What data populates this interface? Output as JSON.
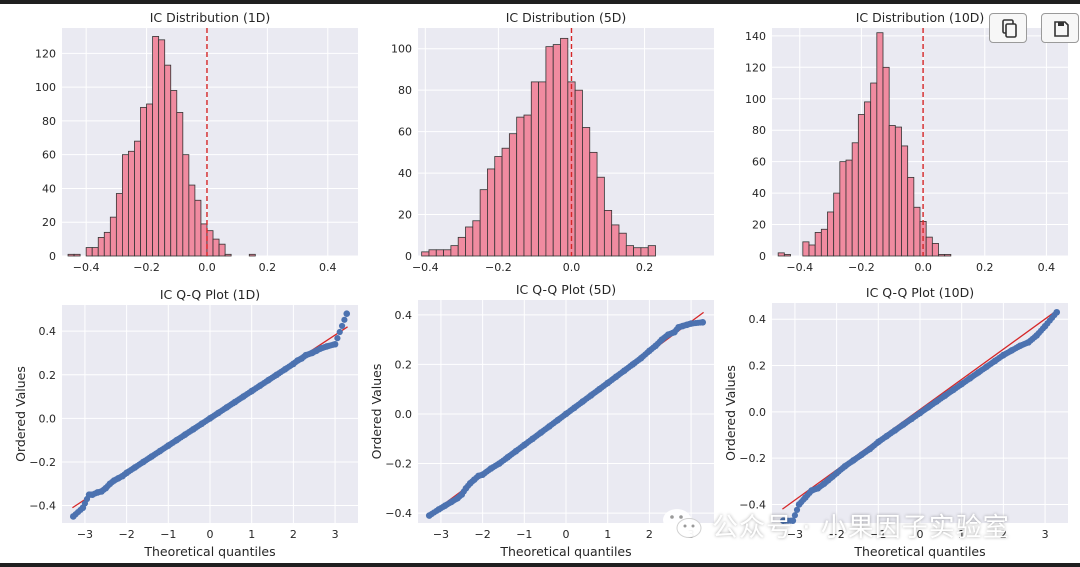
{
  "figure": {
    "background": "#ffffff",
    "axes_background": "#eaeaf2",
    "grid_color": "#ffffff",
    "bar_color": "#f08ba0",
    "bar_edge": "#333333",
    "mean_line_color": "#d62728",
    "point_color": "#4c72b0",
    "fit_line_color": "#d62728"
  },
  "toolbar": {
    "copy_icon": "copy-icon",
    "save_icon": "save-icon"
  },
  "watermark": {
    "icon": "wechat-icon",
    "text": "公众号 · 小果因子实验室"
  },
  "chart_data": [
    {
      "type": "bar",
      "title": "IC Distribution (1D)",
      "xlabel": "",
      "ylabel": "",
      "xlim": [
        -0.48,
        0.5
      ],
      "ylim": [
        0,
        135
      ],
      "xticks": [
        -0.4,
        -0.2,
        0.0,
        0.2,
        0.4
      ],
      "yticks": [
        0,
        20,
        40,
        60,
        80,
        100,
        120
      ],
      "xtick_labels": [
        "−0.4",
        "−0.2",
        "0.0",
        "0.2",
        "0.4"
      ],
      "ytick_labels": [
        "0",
        "20",
        "40",
        "60",
        "80",
        "100",
        "120"
      ],
      "grid": true,
      "bin_start": -0.46,
      "bin_width": 0.02,
      "counts": [
        1,
        1,
        0,
        5,
        5,
        11,
        14,
        23,
        37,
        60,
        62,
        68,
        88,
        90,
        130,
        128,
        113,
        98,
        85,
        60,
        42,
        33,
        19,
        15,
        10,
        7,
        1,
        0,
        0,
        0,
        1
      ],
      "mean_line_x": 0.0
    },
    {
      "type": "bar",
      "title": "IC Distribution (5D)",
      "xlabel": "",
      "ylabel": "",
      "xlim": [
        -0.42,
        0.39
      ],
      "ylim": [
        0,
        110
      ],
      "xticks": [
        -0.4,
        -0.2,
        0.0,
        0.2
      ],
      "yticks": [
        0,
        20,
        40,
        60,
        80,
        100
      ],
      "xtick_labels": [
        "−0.4",
        "−0.2",
        "0.0",
        "0.2"
      ],
      "ytick_labels": [
        "0",
        "20",
        "40",
        "60",
        "80",
        "100"
      ],
      "grid": true,
      "bin_start": -0.41,
      "bin_width": 0.02,
      "counts": [
        2,
        3,
        3,
        3,
        5,
        9,
        14,
        17,
        32,
        42,
        48,
        52,
        59,
        67,
        68,
        84,
        84,
        101,
        102,
        105,
        84,
        80,
        62,
        50,
        38,
        22,
        15,
        11,
        5,
        4,
        4,
        5
      ],
      "mean_line_x": 0.0
    },
    {
      "type": "bar",
      "title": "IC Distribution (10D)",
      "xlabel": "",
      "ylabel": "",
      "xlim": [
        -0.49,
        0.47
      ],
      "ylim": [
        0,
        145
      ],
      "xticks": [
        -0.4,
        -0.2,
        0.0,
        0.2,
        0.4
      ],
      "yticks": [
        0,
        20,
        40,
        60,
        80,
        100,
        120,
        140
      ],
      "xtick_labels": [
        "−0.4",
        "−0.2",
        "0.0",
        "0.2",
        "0.4"
      ],
      "ytick_labels": [
        "0",
        "20",
        "40",
        "60",
        "80",
        "100",
        "120",
        "140"
      ],
      "grid": true,
      "bin_start": -0.47,
      "bin_width": 0.02,
      "counts": [
        2,
        1,
        0,
        0,
        9,
        7,
        15,
        17,
        28,
        40,
        60,
        61,
        72,
        90,
        98,
        110,
        142,
        120,
        83,
        82,
        70,
        50,
        31,
        22,
        12,
        8,
        1,
        1
      ],
      "mean_line_x": 0.0
    },
    {
      "type": "scatter",
      "title": "IC Q-Q Plot (1D)",
      "xlabel": "Theoretical quantiles",
      "ylabel": "Ordered Values",
      "xlim": [
        -3.55,
        3.55
      ],
      "ylim": [
        -0.48,
        0.52
      ],
      "xticks": [
        -3,
        -2,
        -1,
        0,
        1,
        2,
        3
      ],
      "yticks": [
        -0.4,
        -0.2,
        0.0,
        0.2,
        0.4
      ],
      "xtick_labels": [
        "−3",
        "−2",
        "−1",
        "0",
        "1",
        "2",
        "3"
      ],
      "ytick_labels": [
        "−0.4",
        "−0.2",
        "0.0",
        "0.2",
        "0.4"
      ],
      "grid": true,
      "fit_line": {
        "x": [
          -3.3,
          3.3
        ],
        "y": [
          -0.41,
          0.42
        ]
      },
      "points_x": [
        -3.28,
        -3.05,
        -2.9,
        -2.82,
        -2.7,
        -2.6,
        -2.5,
        -2.4,
        -2.3,
        -2.2,
        -2.1,
        -2.0,
        -1.8,
        -1.6,
        -1.4,
        -1.2,
        -1.0,
        -0.8,
        -0.6,
        -0.4,
        -0.2,
        0.0,
        0.2,
        0.4,
        0.6,
        0.8,
        1.0,
        1.2,
        1.4,
        1.6,
        1.8,
        2.0,
        2.1,
        2.2,
        2.3,
        2.45,
        2.55,
        2.65,
        2.8,
        3.0,
        3.28
      ],
      "points_y": [
        -0.45,
        -0.41,
        -0.35,
        -0.35,
        -0.34,
        -0.335,
        -0.32,
        -0.3,
        -0.285,
        -0.275,
        -0.265,
        -0.25,
        -0.225,
        -0.2,
        -0.175,
        -0.15,
        -0.125,
        -0.1,
        -0.075,
        -0.05,
        -0.025,
        0.0,
        0.025,
        0.05,
        0.075,
        0.1,
        0.125,
        0.15,
        0.175,
        0.2,
        0.225,
        0.25,
        0.265,
        0.275,
        0.29,
        0.3,
        0.31,
        0.32,
        0.33,
        0.34,
        0.48
      ]
    },
    {
      "type": "scatter",
      "title": "IC Q-Q Plot (5D)",
      "xlabel": "Theoretical quantiles",
      "ylabel": "Ordered Values",
      "xlim": [
        -3.55,
        3.55
      ],
      "ylim": [
        -0.44,
        0.46
      ],
      "xticks": [
        -3,
        -2,
        -1,
        0,
        1,
        2,
        3
      ],
      "yticks": [
        -0.4,
        -0.2,
        0.0,
        0.2,
        0.4
      ],
      "xtick_labels": [
        "−3",
        "−2",
        "−1",
        "0",
        "1",
        "2",
        "3"
      ],
      "ytick_labels": [
        "−0.4",
        "−0.2",
        "0.0",
        "0.2",
        "0.4"
      ],
      "grid": true,
      "fit_line": {
        "x": [
          -3.3,
          3.3
        ],
        "y": [
          -0.41,
          0.41
        ]
      },
      "points_x": [
        -3.28,
        -3.05,
        -2.9,
        -2.75,
        -2.6,
        -2.5,
        -2.4,
        -2.3,
        -2.2,
        -2.1,
        -2.0,
        -1.8,
        -1.6,
        -1.4,
        -1.2,
        -1.0,
        -0.8,
        -0.6,
        -0.4,
        -0.2,
        0.0,
        0.2,
        0.4,
        0.6,
        0.8,
        1.0,
        1.2,
        1.4,
        1.6,
        1.8,
        2.0,
        2.15,
        2.3,
        2.45,
        2.6,
        2.7,
        2.8,
        2.9,
        3.0,
        3.28
      ],
      "points_y": [
        -0.41,
        -0.385,
        -0.37,
        -0.355,
        -0.34,
        -0.325,
        -0.3,
        -0.28,
        -0.265,
        -0.25,
        -0.245,
        -0.22,
        -0.2,
        -0.175,
        -0.15,
        -0.125,
        -0.1,
        -0.075,
        -0.05,
        -0.025,
        0.0,
        0.025,
        0.05,
        0.075,
        0.1,
        0.125,
        0.15,
        0.175,
        0.2,
        0.225,
        0.255,
        0.275,
        0.3,
        0.32,
        0.33,
        0.35,
        0.355,
        0.36,
        0.365,
        0.37
      ]
    },
    {
      "type": "scatter",
      "title": "IC Q-Q Plot (10D)",
      "xlabel": "Theoretical quantiles",
      "ylabel": "Ordered Values",
      "xlim": [
        -3.55,
        3.55
      ],
      "ylim": [
        -0.48,
        0.47
      ],
      "xticks": [
        -3,
        -2,
        -1,
        0,
        1,
        2,
        3
      ],
      "yticks": [
        -0.4,
        -0.2,
        0.0,
        0.2,
        0.4
      ],
      "xtick_labels": [
        "−3",
        "−2",
        "−1",
        "0",
        "1",
        "2",
        "3"
      ],
      "ytick_labels": [
        "−0.4",
        "−0.2",
        "0.0",
        "0.2",
        "0.4"
      ],
      "grid": true,
      "fit_line": {
        "x": [
          -3.3,
          3.3
        ],
        "y": [
          -0.42,
          0.44
        ]
      },
      "points_x": [
        -3.28,
        -3.05,
        -2.9,
        -2.75,
        -2.6,
        -2.45,
        -2.3,
        -2.2,
        -2.1,
        -2.0,
        -1.8,
        -1.6,
        -1.4,
        -1.2,
        -1.0,
        -0.8,
        -0.6,
        -0.4,
        -0.2,
        0.0,
        0.2,
        0.4,
        0.6,
        0.8,
        1.0,
        1.2,
        1.4,
        1.6,
        1.8,
        2.0,
        2.2,
        2.4,
        2.6,
        2.8,
        3.0,
        3.28
      ],
      "points_y": [
        -0.47,
        -0.47,
        -0.4,
        -0.37,
        -0.34,
        -0.33,
        -0.31,
        -0.295,
        -0.28,
        -0.265,
        -0.235,
        -0.21,
        -0.185,
        -0.16,
        -0.13,
        -0.105,
        -0.08,
        -0.055,
        -0.03,
        -0.005,
        0.02,
        0.045,
        0.07,
        0.095,
        0.12,
        0.145,
        0.17,
        0.195,
        0.22,
        0.245,
        0.265,
        0.285,
        0.3,
        0.33,
        0.37,
        0.43
      ]
    }
  ]
}
